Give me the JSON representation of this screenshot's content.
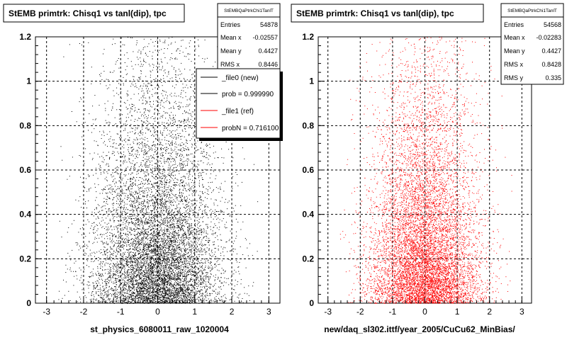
{
  "chart_data": [
    {
      "type": "scatter",
      "title": "StEMB primtrk: Chisq1 vs tanl(dip), tpc",
      "xlabel": "st_physics_6080011_raw_1020004",
      "ylabel": "",
      "xlim": [
        -3.3,
        3.3
      ],
      "ylim": [
        0,
        1.2
      ],
      "x_ticks": [
        "-3",
        "-2",
        "-1",
        "0",
        "1",
        "2",
        "3"
      ],
      "y_ticks": [
        "0",
        "0.2",
        "0.4",
        "0.6",
        "0.8",
        "1",
        "1.2"
      ],
      "grid": true,
      "marker_color": "#000000",
      "density_profile": {
        "x_center": 0.0,
        "x_sigma": 0.85,
        "x_clip": 2.7,
        "y_decay_scale": 0.75,
        "note_source": "dense cloud peaking near x=0, y=0"
      },
      "stats": {
        "name": "StEMBQaPtrkChi1TanlT",
        "entries_label": "Entries",
        "entries": "54878",
        "meanx_label": "Mean x",
        "meanx": "-0.02557",
        "meany_label": "Mean y",
        "meany": "0.4427",
        "rmsx_label": "RMS x",
        "rmsx": "0.8446"
      },
      "legend": {
        "placement": "top-right",
        "entries": [
          {
            "label": "_file0 (new)",
            "color": "#000000"
          },
          {
            "label": "prob = 0.999990",
            "color": "#000000"
          },
          {
            "label": "_file1 (ref)",
            "color": "#ff0000"
          },
          {
            "label": "probN = 0.716100",
            "color": "#ff0000"
          }
        ]
      }
    },
    {
      "type": "scatter",
      "title": "StEMB primtrk: Chisq1 vs tanl(dip), tpc",
      "xlabel": "new/daq_sl302.ittf/year_2005/CuCu62_MinBias/",
      "ylabel": "",
      "xlim": [
        -3.3,
        3.3
      ],
      "ylim": [
        0,
        1.2
      ],
      "x_ticks": [
        "-3",
        "-2",
        "-1",
        "0",
        "1",
        "2",
        "3"
      ],
      "y_ticks": [
        "0",
        "0.2",
        "0.4",
        "0.6",
        "0.8",
        "1",
        "1.2"
      ],
      "grid": true,
      "marker_color": "#ff0000",
      "stats": {
        "name": "StEMBQaPtrkChi1TanlT",
        "entries_label": "Entries",
        "entries": "54568",
        "meanx_label": "Mean x",
        "meanx": "-0.02283",
        "meany_label": "Mean y",
        "meany": "0.4427",
        "rmsx_label": "RMS x",
        "rmsx": "0.8428",
        "rmsy_label": "RMS y",
        "rmsy": "0.335"
      }
    }
  ]
}
